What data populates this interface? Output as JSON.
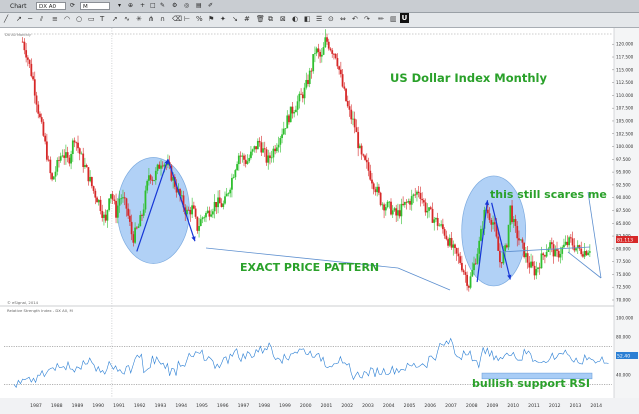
{
  "window": {
    "tab_label": "Chart",
    "symbol": "DX A0",
    "interval": "M"
  },
  "chart_data": {
    "type": "line",
    "title": "US Dollar Index Monthly",
    "x_ticks": [
      "1987",
      "1988",
      "1989",
      "1990",
      "1991",
      "1992",
      "1993",
      "1994",
      "1995",
      "1996",
      "1997",
      "1998",
      "1999",
      "2000",
      "2001",
      "2002",
      "2003",
      "2004",
      "2005",
      "2006",
      "2007",
      "2008",
      "2009",
      "2010",
      "2011",
      "2012",
      "2013",
      "2014"
    ],
    "price_ticks": [
      "120.000",
      "117.500",
      "115.000",
      "112.500",
      "110.000",
      "107.500",
      "105.000",
      "102.500",
      "100.000",
      "97.500",
      "95.000",
      "92.500",
      "90.000",
      "87.500",
      "85.000",
      "82.500",
      "80.000",
      "77.500",
      "75.000",
      "72.500",
      "70.000"
    ],
    "ylim": [
      70.0,
      122.0
    ],
    "series": [
      {
        "x": [
          1986.9,
          1987.1,
          1987.4,
          1987.7,
          1988.0,
          1988.3,
          1988.5,
          1988.8,
          1989.1,
          1989.4,
          1989.7,
          1990.0,
          1990.3,
          1990.6,
          1990.9,
          1991.1,
          1991.4,
          1991.6,
          1991.9,
          1992.2,
          1992.5,
          1992.7,
          1993.0,
          1993.2,
          1993.6,
          1993.9,
          1994.2,
          1994.5,
          1994.8,
          1995.1,
          1995.3,
          1995.6,
          1995.8,
          1996.2,
          1996.6,
          1997.0,
          1997.3,
          1997.7,
          1998.0,
          1998.3,
          1998.7,
          1999.0,
          1999.4,
          1999.8,
          2000.2,
          2000.5,
          2000.8,
          2001.0,
          2001.3,
          2001.5,
          2001.8,
          2002.0,
          2002.3,
          2002.6,
          2002.9,
          2003.2,
          2003.5,
          2003.9,
          2004.2,
          2004.6,
          2004.9,
          2005.3,
          2005.7,
          2006.0,
          2006.3,
          2006.8,
          2007.2,
          2007.6,
          2008.0,
          2008.4,
          2008.6,
          2008.9,
          2009.2,
          2009.6,
          2009.9,
          2010.2,
          2010.4,
          2010.6,
          2010.9,
          2011.3,
          2011.6,
          2012.0,
          2012.3,
          2012.6,
          2013.0,
          2013.3,
          2013.6,
          2014.0,
          2014.3
        ],
        "y": [
          120.5,
          118.0,
          113.0,
          106.0,
          100.0,
          93.0,
          95.5,
          99.0,
          97.0,
          102.0,
          98.0,
          95.0,
          91.5,
          89.0,
          85.0,
          92.0,
          87.0,
          90.5,
          88.0,
          82.0,
          84.5,
          87.5,
          95.0,
          93.5,
          97.5,
          96.0,
          93.0,
          90.0,
          87.0,
          88.0,
          84.0,
          86.5,
          87.0,
          89.0,
          88.5,
          94.0,
          98.5,
          97.0,
          99.0,
          101.0,
          97.0,
          99.5,
          103.0,
          106.5,
          109.0,
          111.0,
          115.0,
          119.0,
          117.0,
          121.0,
          119.0,
          118.0,
          112.0,
          107.0,
          104.0,
          98.0,
          96.0,
          92.0,
          89.0,
          88.0,
          86.5,
          88.5,
          90.0,
          91.5,
          88.0,
          85.5,
          83.5,
          80.0,
          77.5,
          73.0,
          76.0,
          81.0,
          88.0,
          85.0,
          77.5,
          80.0,
          88.0,
          84.0,
          81.0,
          77.0,
          75.5,
          79.0,
          81.0,
          78.5,
          80.5,
          81.5,
          80.0,
          79.5,
          80.5
        ]
      }
    ],
    "rsi": {
      "title": "Relative Strength Index - DX A0, M",
      "ticks": [
        "100.000",
        "80.000",
        "60.000",
        "40.000"
      ],
      "ylim": [
        20,
        100
      ],
      "values": [
        30,
        33,
        35,
        40,
        45,
        52,
        50,
        46,
        55,
        49,
        44,
        50,
        41,
        47,
        58,
        45,
        56,
        50,
        44,
        53,
        58,
        62,
        55,
        50,
        56,
        64,
        59,
        62,
        66,
        70,
        61,
        57,
        65,
        66,
        63,
        58,
        52,
        55,
        48,
        40,
        41,
        43,
        44,
        45,
        46,
        48,
        50,
        52,
        58,
        70,
        74,
        60,
        66,
        52,
        64,
        61,
        57,
        65,
        58,
        63,
        57,
        53,
        60,
        63,
        57,
        53,
        60,
        54,
        56
      ]
    },
    "annotations": [
      "EXACT PRICE PATTERN",
      "this still scares me",
      "bullish support RSI"
    ],
    "watermark": "© eSignal, 2014",
    "current_price": "81.113",
    "current_rsi": "52.40",
    "colors": {
      "up": "#2fbf2f",
      "down": "#d62828",
      "rsi_line": "#2b7fd4",
      "annot": "#2aa12a",
      "ellipse_fill": "#a9cdf6",
      "arrow": "#1636d6"
    }
  }
}
